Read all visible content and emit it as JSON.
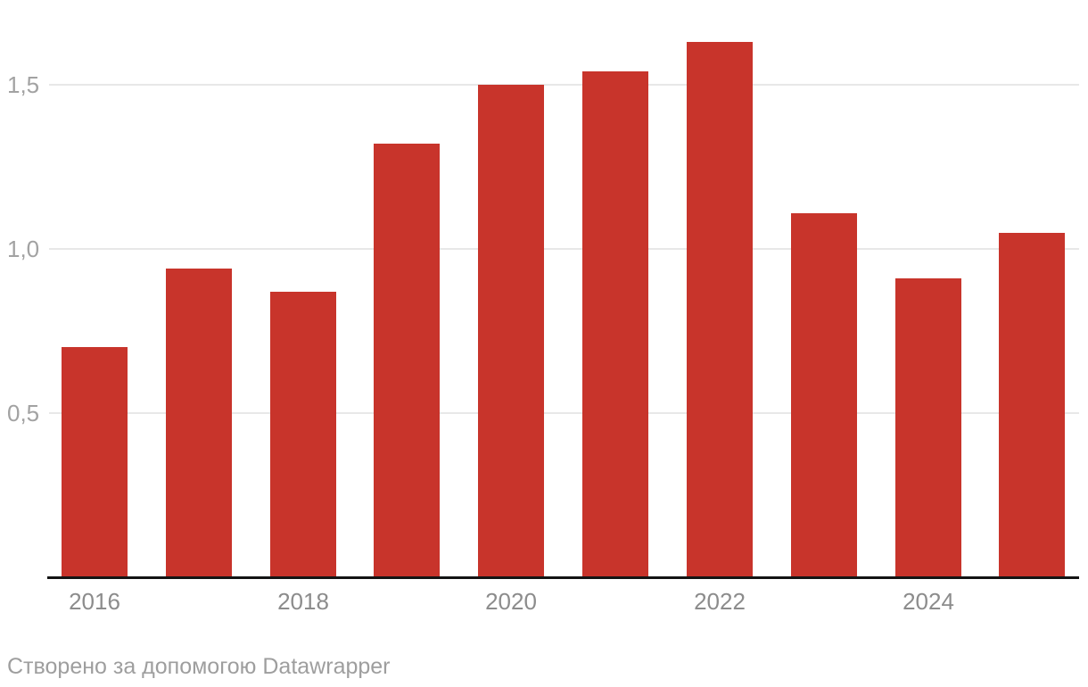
{
  "chart_data": {
    "type": "bar",
    "categories": [
      "2016",
      "2017",
      "2018",
      "2019",
      "2020",
      "2021",
      "2022",
      "2023",
      "2024",
      "2025"
    ],
    "values": [
      0.7,
      0.94,
      0.87,
      1.32,
      1.5,
      1.54,
      1.63,
      1.11,
      0.91,
      1.05
    ],
    "x_tick_labels_shown": [
      "2016",
      "2018",
      "2020",
      "2022",
      "2024"
    ],
    "x_tick_every": 2,
    "y_ticks": [
      {
        "value": 0.5,
        "label": "0,5"
      },
      {
        "value": 1.0,
        "label": "1,0"
      },
      {
        "value": 1.5,
        "label": "1,5"
      }
    ],
    "ylim": [
      0,
      1.7
    ],
    "decimal_separator": ",",
    "grid": "horizontal-only",
    "legend": "none",
    "title": "",
    "xlabel": "",
    "ylabel": "",
    "colors": {
      "bar": "#c8342b",
      "gridline": "#e8e8e8",
      "axis_line": "#141414",
      "x_tick_label": "#8c8c8c",
      "y_tick_label": "#a2a2a2",
      "background": "#ffffff"
    }
  },
  "footer": {
    "credit": "Створено за допомогою Datawrapper"
  }
}
